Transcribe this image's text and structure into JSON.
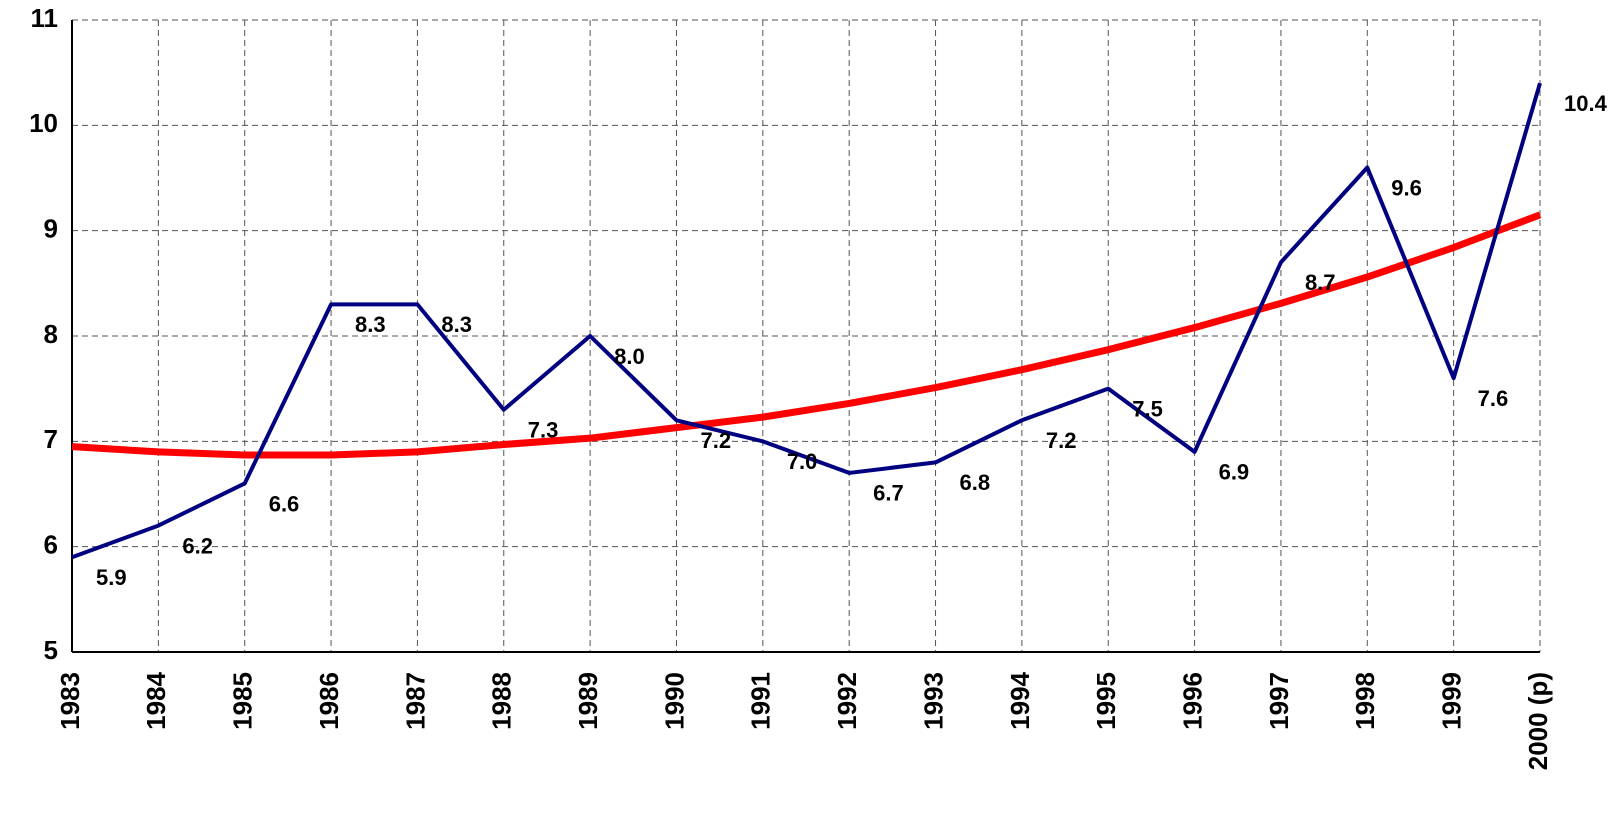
{
  "chart_data": {
    "type": "line",
    "categories": [
      "1983",
      "1984",
      "1985",
      "1986",
      "1987",
      "1988",
      "1989",
      "1990",
      "1991",
      "1992",
      "1993",
      "1994",
      "1995",
      "1996",
      "1997",
      "1998",
      "1999",
      "2000 (p)"
    ],
    "series": [
      {
        "color": "#000080",
        "values": [
          5.9,
          6.2,
          6.6,
          8.3,
          8.3,
          7.3,
          8,
          7.2,
          7,
          6.7,
          6.8,
          7.2,
          7.5,
          6.9,
          8.7,
          9.6,
          7.6,
          10.4
        ],
        "value_labels": [
          "5.9",
          "6.2",
          "6.6",
          "8.3",
          "8.3",
          "7.3",
          "8.0",
          "7.2",
          "7.0",
          "6.7",
          "6.8",
          "7.2",
          "7.5",
          "6.9",
          "8.7",
          "9.6",
          "7.6",
          "10.4"
        ]
      },
      {
        "color": "#ff0000",
        "values": [
          6.95,
          6.9,
          6.87,
          6.87,
          6.9,
          6.97,
          7.03,
          7.13,
          7.23,
          7.36,
          7.51,
          7.68,
          7.87,
          8.08,
          8.31,
          8.56,
          8.84,
          9.15
        ]
      }
    ],
    "ylim": [
      5,
      11
    ],
    "yticks": [
      5,
      6,
      7,
      8,
      9,
      10,
      11
    ],
    "grid": true
  }
}
